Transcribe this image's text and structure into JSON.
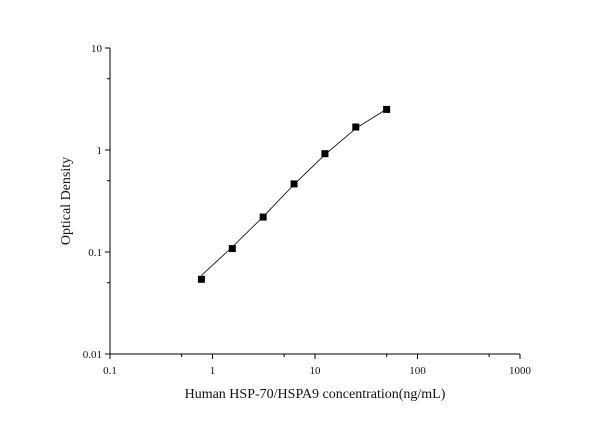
{
  "chart_data": {
    "type": "scatter",
    "title": "",
    "xlabel": "Human HSP-70/HSPA9 concentration(ng/mL)",
    "ylabel": "Optical Density",
    "x_scale": "log",
    "y_scale": "log",
    "xlim": [
      0.1,
      1000
    ],
    "ylim": [
      0.01,
      10
    ],
    "x_ticks": [
      "0.1",
      "1",
      "10",
      "100",
      "1000"
    ],
    "y_ticks": [
      "0.01",
      "0.1",
      "1",
      "10"
    ],
    "grid": false,
    "legend": "none",
    "series": [
      {
        "marker": "square",
        "color": "#000000",
        "x": [
          0.78,
          1.56,
          3.12,
          6.25,
          12.5,
          25,
          50
        ],
        "y": [
          0.054,
          0.108,
          0.22,
          0.465,
          0.92,
          1.68,
          2.5
        ]
      }
    ],
    "fit_line": {
      "color": "#000000",
      "x": [
        0.78,
        1.56,
        3.12,
        6.25,
        12.5,
        25,
        50
      ],
      "y": [
        0.059,
        0.112,
        0.222,
        0.46,
        0.9,
        1.63,
        2.52
      ]
    }
  }
}
